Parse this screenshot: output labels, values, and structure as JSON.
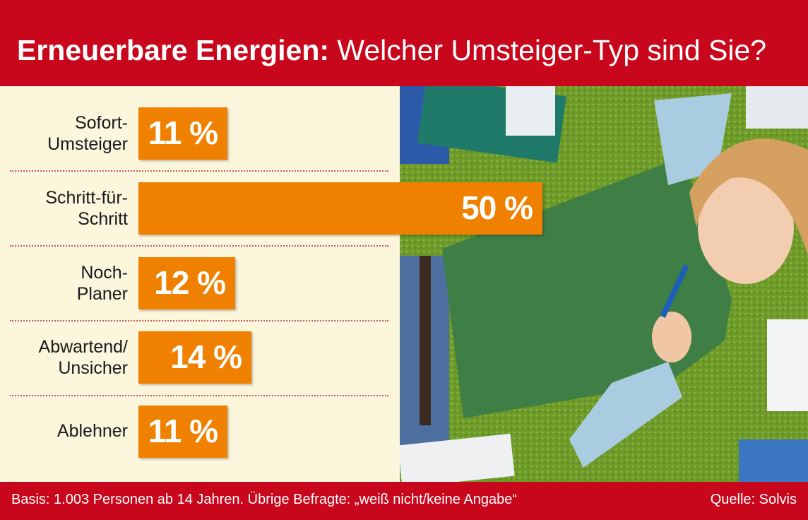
{
  "header": {
    "title_bold": "Erneuerbare Energien:",
    "title_rest": " Welcher Umsteiger-Typ sind Sie?"
  },
  "footer": {
    "basis": "Basis: 1.003 Personen ab 14 Jahren. Übrige Befragte: „weiß nicht/keine Angabe“",
    "source": "Quelle: Solvis"
  },
  "colors": {
    "header_bg": "#c8071c",
    "bar": "#f08100",
    "panel_bg": "#fbf6dc"
  },
  "chart_data": {
    "type": "bar",
    "orientation": "horizontal",
    "title": "Erneuerbare Energien: Welcher Umsteiger-Typ sind Sie?",
    "categories": [
      "Sofort-\nUmsteiger",
      "Schritt-für-\nSchritt",
      "Noch-\nPlaner",
      "Abwartend/\nUnsicher",
      "Ablehner"
    ],
    "values": [
      11,
      50,
      12,
      14,
      11
    ],
    "value_labels": [
      "11 %",
      "50 %",
      "12 %",
      "14 %",
      "11 %"
    ],
    "unit": "%",
    "xlim": [
      0,
      50
    ],
    "grid": false
  }
}
